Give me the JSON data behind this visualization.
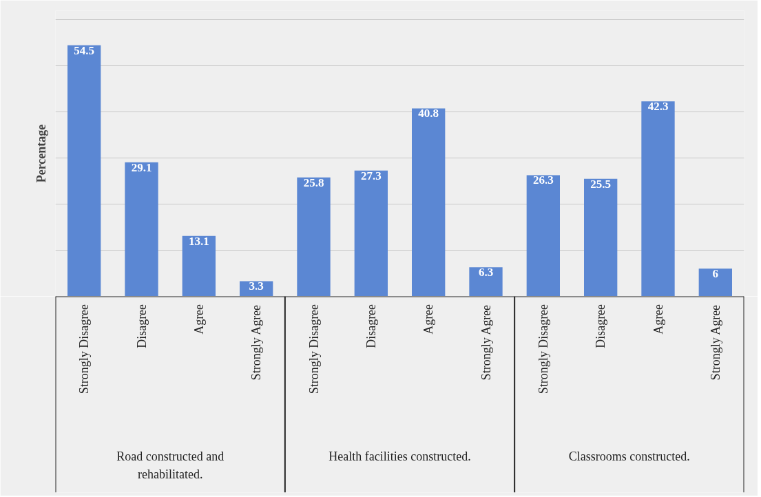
{
  "chart_data": {
    "type": "bar",
    "ylabel": "Percentage",
    "categories": [
      "Strongly Disagree",
      "Disagree",
      "Agree",
      "Strongly Agree",
      "Strongly Disagree",
      "Disagree",
      "Agree",
      "Strongly Agree",
      "Strongly Disagree",
      "Disagree",
      "Agree",
      "Strongly Agree"
    ],
    "values": [
      54.5,
      29.1,
      13.1,
      3.3,
      25.8,
      27.3,
      40.8,
      6.3,
      26.3,
      25.5,
      42.3,
      6
    ],
    "color": "#5b87d3",
    "annotations": [
      "Road constructed and rehabilitated.",
      "Health facilities constructed.",
      "Classrooms constructed."
    ],
    "ylim": [
      0,
      62
    ],
    "yticks": [
      {
        "value": 0,
        "label": null
      },
      {
        "value": 10,
        "label": null
      },
      {
        "value": 20,
        "label": null
      },
      {
        "value": 30,
        "label": null
      },
      {
        "value": 40,
        "label": null
      },
      {
        "value": 50,
        "label": null
      },
      {
        "value": 60,
        "label": null
      }
    ],
    "tick_labels": "x",
    "grid": "y",
    "data_labels": true
  }
}
